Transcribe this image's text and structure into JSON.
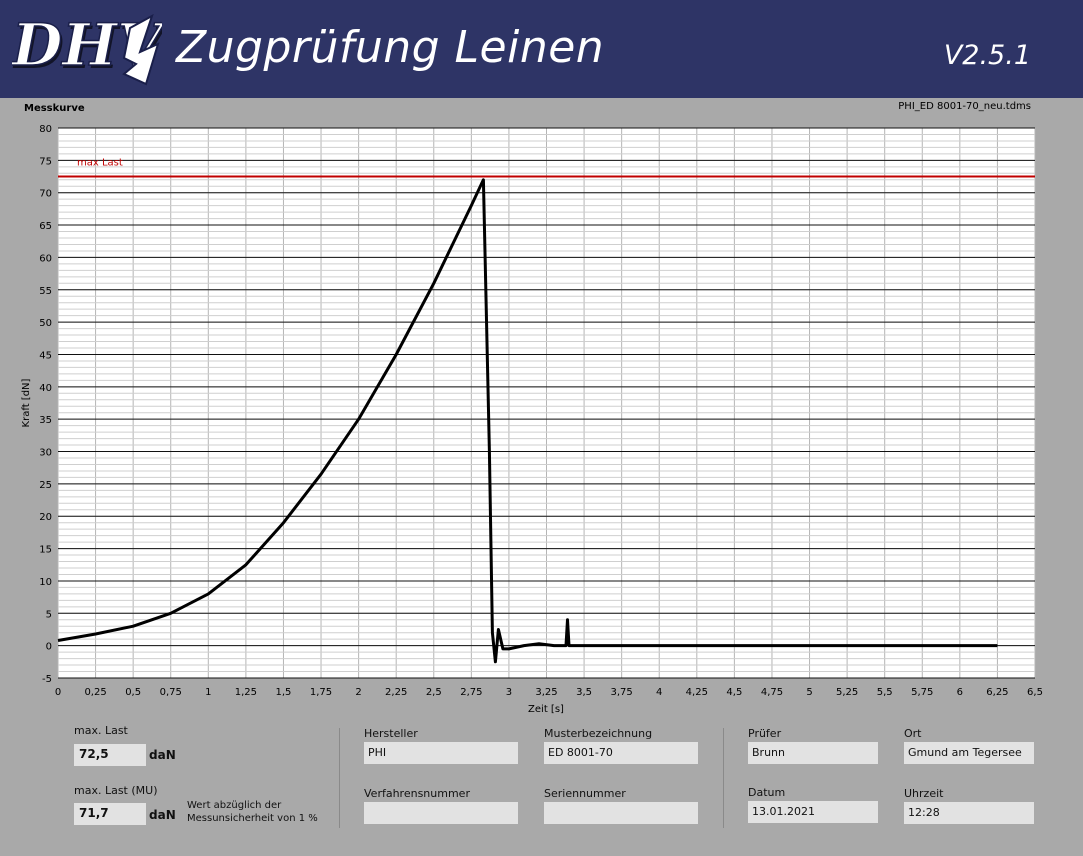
{
  "header": {
    "logo_text": "DHV",
    "title": "Zugprüfung Leinen",
    "version": "V2.5.1"
  },
  "chart_header": {
    "title": "Messkurve",
    "file": "PHI_ED 8001-70_neu.tdms"
  },
  "chart_data": {
    "type": "line",
    "xlabel": "Zeit [s]",
    "ylabel": "Kraft [dN]",
    "xlim": [
      0,
      6.5
    ],
    "ylim": [
      -5,
      80
    ],
    "x_ticks": [
      "0",
      "0,25",
      "0,5",
      "0,75",
      "1",
      "1,25",
      "1,5",
      "1,75",
      "2",
      "2,25",
      "2,5",
      "2,75",
      "3",
      "3,25",
      "3,5",
      "3,75",
      "4",
      "4,25",
      "4,5",
      "4,75",
      "5",
      "5,25",
      "5,5",
      "5,75",
      "6",
      "6,25",
      "6,5"
    ],
    "y_ticks": [
      "-5",
      "0",
      "5",
      "10",
      "15",
      "20",
      "25",
      "30",
      "35",
      "40",
      "45",
      "50",
      "55",
      "60",
      "65",
      "70",
      "75",
      "80"
    ],
    "grid": true,
    "reference_line": {
      "name": "max Last",
      "value": 72.5,
      "color": "#c00000"
    },
    "series": [
      {
        "color": "#000000",
        "x": [
          0,
          0.25,
          0.5,
          0.75,
          1.0,
          1.25,
          1.5,
          1.75,
          2.0,
          2.25,
          2.5,
          2.75,
          2.83,
          2.87,
          2.89,
          2.91,
          2.93,
          2.96,
          3.0,
          3.1,
          3.2,
          3.3,
          3.38,
          3.39,
          3.4,
          3.45,
          3.6,
          4.0,
          4.5,
          5.0,
          5.5,
          6.0,
          6.25
        ],
        "y": [
          0.8,
          1.8,
          3.0,
          5.0,
          8.0,
          12.5,
          19.0,
          26.5,
          35.0,
          45.0,
          56.0,
          68.0,
          72.0,
          30.0,
          2.0,
          -2.5,
          2.5,
          -0.5,
          -0.5,
          0.0,
          0.3,
          0.0,
          0.0,
          4.0,
          0.0,
          0.0,
          0.0,
          0.0,
          0.0,
          0.0,
          0.0,
          0.0,
          0.0
        ]
      }
    ]
  },
  "fields": {
    "max_last_label": "max. Last",
    "max_last_value": "72,5",
    "max_last_unit": "daN",
    "max_last_mu_label": "max. Last (MU)",
    "max_last_mu_value": "71,7",
    "max_last_mu_unit": "daN",
    "mu_note_line1": "Wert abzüglich der",
    "mu_note_line2": "Messunsicherheit von 1 %",
    "hersteller_label": "Hersteller",
    "hersteller_value": "PHI",
    "muster_label": "Musterbezeichnung",
    "muster_value": "ED 8001-70",
    "verfahren_label": "Verfahrensnummer",
    "verfahren_value": "",
    "serien_label": "Seriennummer",
    "serien_value": "",
    "pruefer_label": "Prüfer",
    "pruefer_value": "Brunn",
    "ort_label": "Ort",
    "ort_value": "Gmund am Tegersee",
    "datum_label": "Datum",
    "datum_value": "13.01.2021",
    "uhrzeit_label": "Uhrzeit",
    "uhrzeit_value": "12:28"
  }
}
